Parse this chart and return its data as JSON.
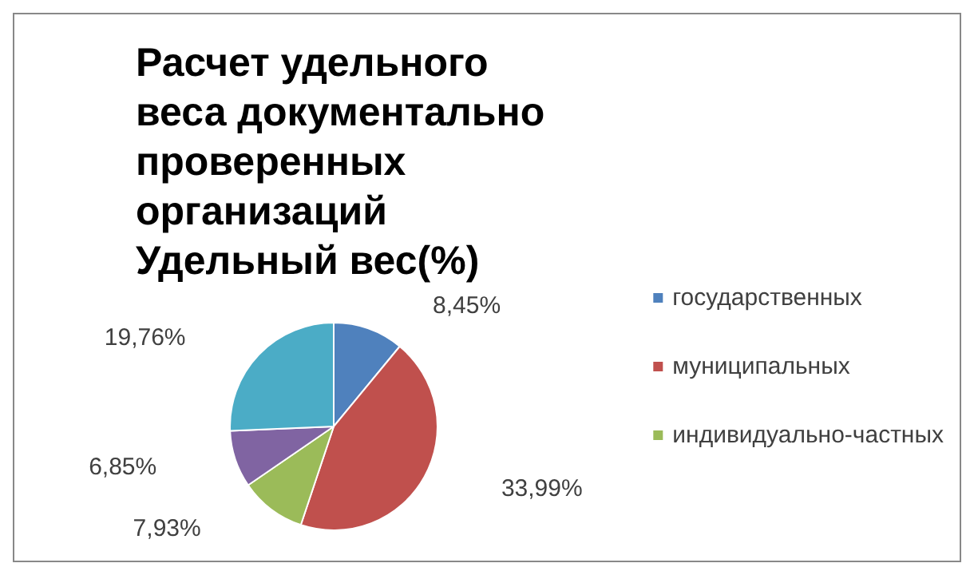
{
  "chart_data": {
    "type": "pie",
    "title": "Расчет удельного веса документально проверенных организаций Удельный вес(%)",
    "categories": [
      "государственных",
      "муниципальных",
      "индивидуально-частных",
      null,
      null
    ],
    "values": [
      8.45,
      33.99,
      7.93,
      6.85,
      19.76
    ],
    "colors": [
      "#4f81bd",
      "#c0504d",
      "#9bbb59",
      "#8064a2",
      "#4bacc6"
    ],
    "value_labels": [
      "8,45%",
      "33,99%",
      "7,93%",
      "6,85%",
      "19,76%"
    ],
    "legend": "right"
  }
}
